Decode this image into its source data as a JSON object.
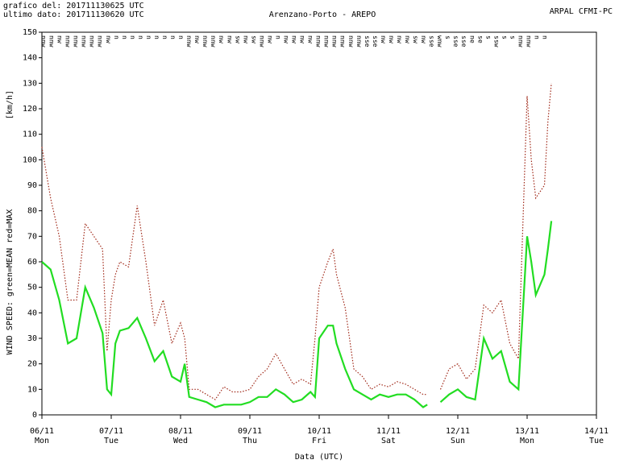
{
  "chart_data": {
    "type": "line",
    "header_left": [
      "grafico del: 201711130625 UTC",
      "ultimo dato: 201711130620 UTC"
    ],
    "title": "Arenzano-Porto - AREPO",
    "header_right": "ARPAL CFMI-PC",
    "y_unit": "[km/h]",
    "y_label": "WIND SPEED: green=MEAN  red=MAX",
    "x_label": "Data (UTC)",
    "xlim": [
      6,
      14
    ],
    "xticks": [
      {
        "value": 6,
        "label": "06/11"
      },
      {
        "value": 7,
        "label": "07/11"
      },
      {
        "value": 8,
        "label": "08/11"
      },
      {
        "value": 9,
        "label": "09/11"
      },
      {
        "value": 10,
        "label": "10/11"
      },
      {
        "value": 11,
        "label": "11/11"
      },
      {
        "value": 12,
        "label": "12/11"
      },
      {
        "value": 13,
        "label": "13/11"
      },
      {
        "value": 14,
        "label": "14/11"
      }
    ],
    "weekdays": [
      "Mon",
      "Tue",
      "Wed",
      "Thu",
      "Fri",
      "Sat",
      "Sun",
      "Mon",
      "Tue"
    ],
    "ylim": [
      0,
      150
    ],
    "yticks": [
      0,
      10,
      20,
      30,
      40,
      50,
      60,
      70,
      80,
      90,
      100,
      110,
      120,
      130,
      140,
      150
    ],
    "directions": [
      "nnw",
      "nnw",
      "nw",
      "nnw",
      "nnw",
      "nnw",
      "nnw",
      "nnw",
      "nw",
      "n",
      "n",
      "n",
      "n",
      "n",
      "n",
      "n",
      "n",
      "n",
      "nnw",
      "nw",
      "nnw",
      "nnw",
      "nw",
      "nw",
      "sw",
      "nw",
      "sw",
      "nnw",
      "nw",
      "n",
      "nw",
      "nw",
      "nw",
      "nw",
      "nnw",
      "nnw",
      "nnw",
      "nnw",
      "nnw",
      "nnw",
      "sse",
      "sse",
      "nw",
      "nw",
      "nw",
      "nw",
      "sw",
      "nw",
      "sse",
      "wnw",
      "s",
      "sse",
      "sse",
      "ne",
      "se",
      "s",
      "ssw",
      "s",
      "s",
      "nnw",
      "nnw",
      "n",
      "n"
    ],
    "x": [
      6,
      6.125,
      6.25,
      6.375,
      6.5,
      6.625,
      6.75,
      6.875,
      6.94,
      7,
      7.06,
      7.125,
      7.25,
      7.375,
      7.5,
      7.625,
      7.75,
      7.875,
      8,
      8.06,
      8.125,
      8.25,
      8.375,
      8.5,
      8.625,
      8.75,
      8.875,
      9,
      9.125,
      9.25,
      9.375,
      9.5,
      9.625,
      9.75,
      9.875,
      9.94,
      10,
      10.125,
      10.2,
      10.25,
      10.375,
      10.5,
      10.625,
      10.75,
      10.875,
      11,
      11.125,
      11.25,
      11.375,
      11.5,
      11.56,
      11.625,
      11.75,
      11.875,
      12,
      12.125,
      12.25,
      12.375,
      12.5,
      12.625,
      12.75,
      12.875,
      13,
      13.06,
      13.125,
      13.25,
      13.3,
      13.35
    ],
    "series": [
      {
        "name": "MAX",
        "color": "#a02818",
        "dash": true,
        "values": [
          105,
          85,
          70,
          45,
          45,
          75,
          70,
          65,
          25,
          45,
          55,
          60,
          58,
          82,
          60,
          35,
          45,
          28,
          36,
          30,
          10,
          10,
          8,
          6,
          11,
          9,
          9,
          10,
          15,
          18,
          24,
          18,
          12,
          14,
          12,
          30,
          50,
          60,
          65,
          55,
          42,
          18,
          15,
          10,
          12,
          11,
          13,
          12,
          10,
          8,
          8,
          null,
          10,
          18,
          20,
          14,
          18,
          43,
          40,
          45,
          28,
          22,
          125,
          100,
          85,
          90,
          115,
          130
        ]
      },
      {
        "name": "MEAN",
        "color": "#22dd22",
        "dash": false,
        "values": [
          60,
          57,
          45,
          28,
          30,
          50,
          42,
          32,
          10,
          8,
          28,
          33,
          34,
          38,
          30,
          21,
          25,
          15,
          13,
          20,
          7,
          6,
          5,
          3,
          4,
          4,
          4,
          5,
          7,
          7,
          10,
          8,
          5,
          6,
          9,
          7,
          30,
          35,
          35,
          28,
          18,
          10,
          8,
          6,
          8,
          7,
          8,
          8,
          6,
          3,
          4,
          null,
          5,
          8,
          10,
          7,
          6,
          30,
          22,
          25,
          13,
          10,
          70,
          60,
          47,
          55,
          65,
          76
        ]
      }
    ]
  }
}
